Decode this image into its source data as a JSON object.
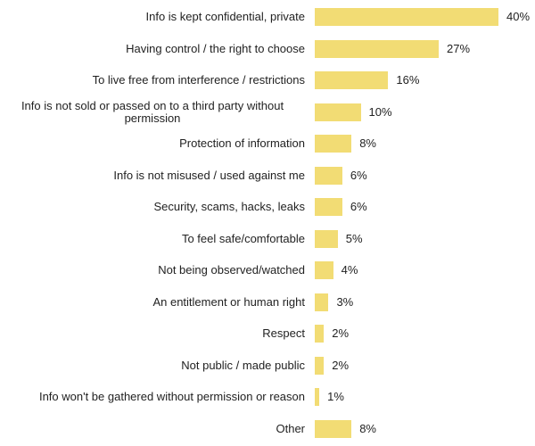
{
  "chart_data": {
    "type": "bar",
    "orientation": "horizontal",
    "categories": [
      "Info is kept confidential, private",
      "Having control / the right to choose",
      "To live free from interference / restrictions",
      "Info is not sold or passed on to a third party without permission",
      "Protection of information",
      "Info is not misused / used against me",
      "Security, scams, hacks, leaks",
      "To feel safe/comfortable",
      "Not being observed/watched",
      "An entitlement or human right",
      "Respect",
      "Not public / made public",
      "Info won't be gathered without permission or reason",
      "Other"
    ],
    "values": [
      40,
      27,
      16,
      10,
      8,
      6,
      6,
      5,
      4,
      3,
      2,
      2,
      1,
      8
    ],
    "value_labels": [
      "40%",
      "27%",
      "16%",
      "10%",
      "8%",
      "6%",
      "6%",
      "5%",
      "4%",
      "3%",
      "2%",
      "2%",
      "1%",
      "8%"
    ],
    "color": "#f2dc74"
  }
}
